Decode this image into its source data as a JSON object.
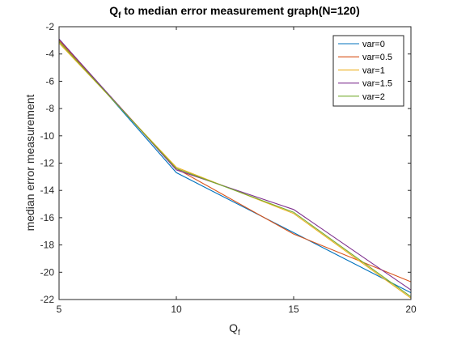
{
  "chart_data": {
    "type": "line",
    "title": {
      "main": "Q",
      "sub": "f",
      "rest": " to median error measurement graph(N=120)"
    },
    "xlabel": {
      "main": "Q",
      "sub": "f"
    },
    "ylabel": "median error measurement",
    "x": [
      5,
      10,
      15,
      20
    ],
    "xlim": [
      5,
      20
    ],
    "ylim": [
      -22,
      -2
    ],
    "xticks": [
      5,
      10,
      15,
      20
    ],
    "yticks": [
      -22,
      -20,
      -18,
      -16,
      -14,
      -12,
      -10,
      -8,
      -6,
      -4,
      -2
    ],
    "grid": false,
    "legend_position": "top-right",
    "series": [
      {
        "name": "var=0",
        "color": "#0072BD",
        "values": [
          -2.9,
          -12.7,
          -17.1,
          -21.5
        ]
      },
      {
        "name": "var=0.5",
        "color": "#D95319",
        "values": [
          -3.0,
          -12.4,
          -17.2,
          -20.7
        ]
      },
      {
        "name": "var=1",
        "color": "#EDB120",
        "values": [
          -3.2,
          -12.3,
          -15.7,
          -21.9
        ]
      },
      {
        "name": "var=1.5",
        "color": "#7E2F8E",
        "values": [
          -2.9,
          -12.5,
          -15.4,
          -21.3
        ]
      },
      {
        "name": "var=2",
        "color": "#77AC30",
        "values": [
          -3.1,
          -12.4,
          -15.6,
          -21.8
        ]
      }
    ]
  }
}
